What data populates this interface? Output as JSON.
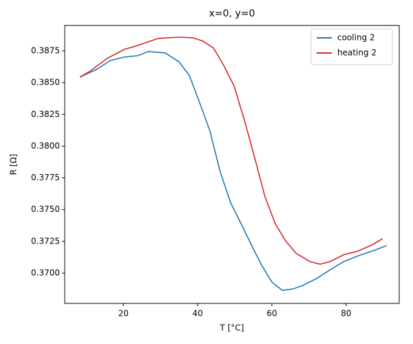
{
  "chart_data": {
    "type": "line",
    "title": "x=0, y=0",
    "x_label": "T [°C]",
    "y_label": "R [Ω]",
    "xlim": [
      4.2,
      94.3
    ],
    "ylim": [
      0.36762,
      0.3895
    ],
    "xticks": [
      20,
      40,
      60,
      80
    ],
    "yticks": [
      {
        "value": 0.37,
        "label": "0.3700"
      },
      {
        "value": 0.3725,
        "label": "0.3725"
      },
      {
        "value": 0.375,
        "label": "0.3750"
      },
      {
        "value": 0.3775,
        "label": "0.3775"
      },
      {
        "value": 0.38,
        "label": "0.3800"
      },
      {
        "value": 0.3825,
        "label": "0.3825"
      },
      {
        "value": 0.385,
        "label": "0.3850"
      },
      {
        "value": 0.3875,
        "label": "0.3875"
      }
    ],
    "legend": "upper right",
    "series": [
      {
        "name": "cooling 2",
        "color": "#1f77b4",
        "x": [
          8.3,
          12.8,
          16.5,
          20.2,
          23.9,
          26.7,
          31.3,
          35,
          37.8,
          40.6,
          43.3,
          46.1,
          48.9,
          51.7,
          54.4,
          57.2,
          60,
          62.8,
          65.6,
          68.3,
          72,
          75.7,
          79.4,
          83.1,
          86.9,
          90.9
        ],
        "values": [
          0.38544,
          0.38604,
          0.38674,
          0.38701,
          0.38712,
          0.38745,
          0.38734,
          0.38663,
          0.38555,
          0.38338,
          0.38121,
          0.37796,
          0.37553,
          0.3739,
          0.37227,
          0.37065,
          0.3693,
          0.36865,
          0.36875,
          0.36903,
          0.36957,
          0.37027,
          0.37092,
          0.37135,
          0.37173,
          0.37217
        ]
      },
      {
        "name": "heating 2",
        "color": "#d62728",
        "x": [
          8.3,
          10.9,
          15.6,
          20.2,
          23.9,
          29.4,
          35,
          38.7,
          41.5,
          44.3,
          47,
          49.8,
          52.6,
          55.4,
          58.1,
          60.9,
          63.7,
          66.5,
          70.2,
          73,
          75.7,
          79.4,
          83.1,
          86.9,
          89.8
        ],
        "values": [
          0.38544,
          0.38587,
          0.3869,
          0.38761,
          0.38793,
          0.38848,
          0.38858,
          0.38853,
          0.38826,
          0.38772,
          0.38636,
          0.38474,
          0.38203,
          0.37905,
          0.37607,
          0.3739,
          0.37255,
          0.37157,
          0.37092,
          0.3707,
          0.37092,
          0.37146,
          0.37173,
          0.37222,
          0.37271
        ]
      }
    ]
  }
}
